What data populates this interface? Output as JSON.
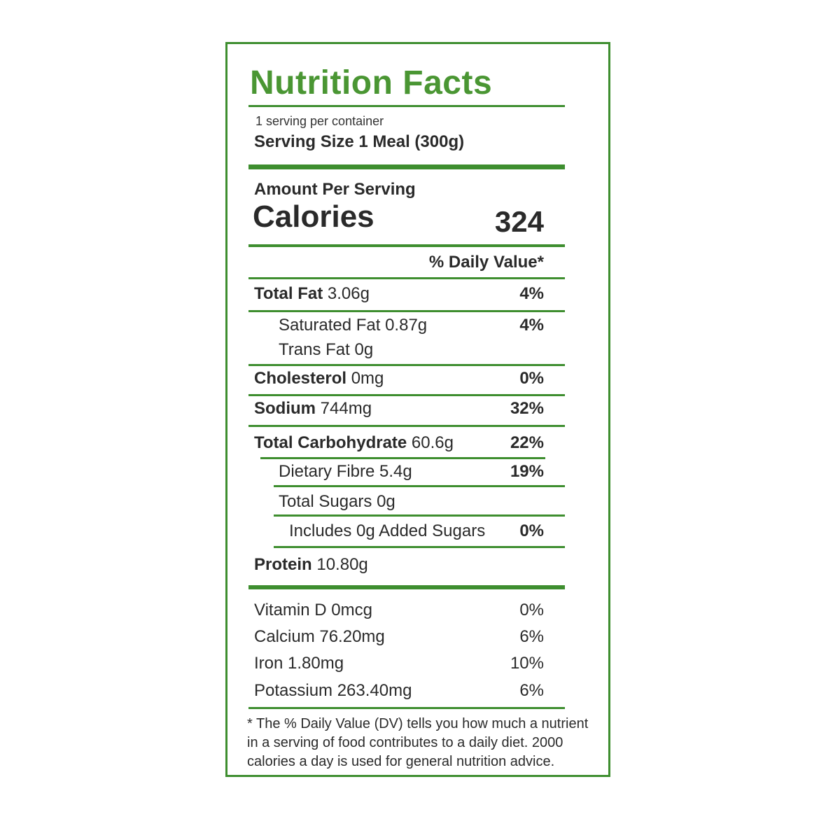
{
  "label": {
    "title": "Nutrition Facts",
    "servings_per_container": "1 serving per container",
    "serving_size": "Serving Size 1 Meal (300g)",
    "amount_per_serving": "Amount Per Serving",
    "calories_label": "Calories",
    "calories_value": "324",
    "daily_value_header": "% Daily Value*",
    "nutrients": {
      "total_fat": {
        "name": "Total Fat",
        "amount": "3.06g",
        "dv": "4%"
      },
      "saturated_fat": {
        "name": "Saturated Fat 0.87g",
        "dv": "4%"
      },
      "trans_fat": {
        "name": "Trans Fat 0g"
      },
      "cholesterol": {
        "name": "Cholesterol",
        "amount": "0mg",
        "dv": "0%"
      },
      "sodium": {
        "name": "Sodium",
        "amount": "744mg",
        "dv": "32%"
      },
      "total_carbohydrate": {
        "name": "Total Carbohydrate",
        "amount": "60.6g",
        "dv": "22%"
      },
      "dietary_fibre": {
        "name": "Dietary Fibre 5.4g",
        "dv": "19%"
      },
      "total_sugars": {
        "name": "Total Sugars 0g"
      },
      "added_sugars": {
        "name": "Includes 0g Added Sugars",
        "dv": "0%"
      },
      "protein": {
        "name": "Protein",
        "amount": "10.80g"
      }
    },
    "vitamins": [
      {
        "name": "Vitamin D 0mcg",
        "dv": "0%"
      },
      {
        "name": "Calcium 76.20mg",
        "dv": "6%"
      },
      {
        "name": "Iron 1.80mg",
        "dv": "10%"
      },
      {
        "name": "Potassium 263.40mg",
        "dv": "6%"
      }
    ],
    "footnote": "* The % Daily Value (DV) tells you how much a nutrient in a serving of food contributes to a daily diet. 2000 calories a day is used for general nutrition advice."
  },
  "colors": {
    "accent": "#3e8e2f",
    "title": "#4a9633",
    "text": "#2a2a2a"
  }
}
